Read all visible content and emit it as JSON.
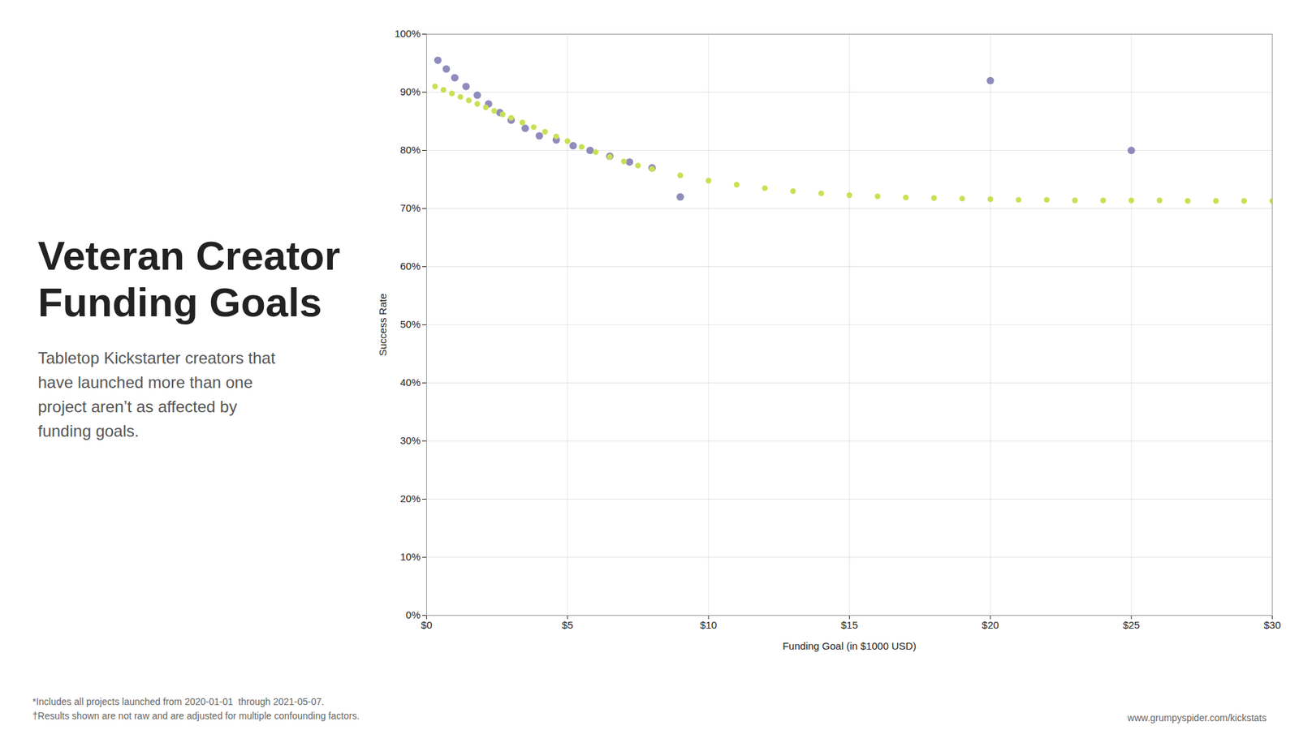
{
  "chart_data": {
    "type": "scatter",
    "title": "Veteran Creator\nFunding Goals",
    "subtitle": "Tabletop Kickstarter creators that\nhave launched more than one\nproject aren’t as affected by\nfunding goals.",
    "xlabel": "Funding Goal (in $1000 USD)",
    "ylabel": "Success Rate",
    "annotations": [
      "*Includes all projects launched from 2020-01-01  through 2021-05-07.",
      "†Results shown are not raw and are adjusted for multiple confounding factors.",
      "www.grumpyspider.com/kickstats"
    ],
    "series": [
      {
        "x": [
          0.4,
          0.7,
          1.0,
          1.4,
          1.8,
          2.2,
          2.6,
          3.0,
          3.5,
          4.0,
          4.6,
          5.2,
          5.8,
          6.5,
          7.2,
          8.0,
          9.0,
          20.0,
          25.0
        ],
        "values": [
          0.955,
          0.94,
          0.925,
          0.91,
          0.895,
          0.88,
          0.865,
          0.852,
          0.838,
          0.825,
          0.818,
          0.808,
          0.8,
          0.79,
          0.78,
          0.77,
          0.72,
          0.92,
          0.8
        ],
        "color": "#7b78b0",
        "marker": "circle"
      },
      {
        "x": [
          0.3,
          0.6,
          0.9,
          1.2,
          1.5,
          1.8,
          2.1,
          2.4,
          2.7,
          3.0,
          3.4,
          3.8,
          4.2,
          4.6,
          5.0,
          5.5,
          6.0,
          6.5,
          7.0,
          7.5,
          8.0,
          9.0,
          10.0,
          11.0,
          12.0,
          13.0,
          14.0,
          15.0,
          16.0,
          17.0,
          18.0,
          19.0,
          20.0,
          21.0,
          22.0,
          23.0,
          24.0,
          25.0,
          26.0,
          27.0,
          28.0,
          29.0,
          30.0
        ],
        "values": [
          0.91,
          0.904,
          0.898,
          0.892,
          0.886,
          0.88,
          0.874,
          0.868,
          0.862,
          0.856,
          0.848,
          0.84,
          0.832,
          0.824,
          0.816,
          0.806,
          0.797,
          0.789,
          0.781,
          0.774,
          0.768,
          0.757,
          0.748,
          0.741,
          0.735,
          0.73,
          0.726,
          0.723,
          0.721,
          0.719,
          0.718,
          0.717,
          0.716,
          0.715,
          0.715,
          0.714,
          0.714,
          0.714,
          0.714,
          0.713,
          0.713,
          0.713,
          0.713
        ],
        "color": "#c8e054",
        "marker": "circle"
      }
    ],
    "xlim": [
      0,
      30
    ],
    "ylim": [
      0,
      1.0
    ],
    "xticks": [
      {
        "value": 0,
        "label": "$0"
      },
      {
        "value": 5,
        "label": "$5"
      },
      {
        "value": 10,
        "label": "$10"
      },
      {
        "value": 15,
        "label": "$15"
      },
      {
        "value": 20,
        "label": "$20"
      },
      {
        "value": 25,
        "label": "$25"
      },
      {
        "value": 30,
        "label": "$30"
      }
    ],
    "yticks": [
      {
        "value": 0,
        "label": "0%"
      },
      {
        "value": 0.1,
        "label": "10%"
      },
      {
        "value": 0.2,
        "label": "20%"
      },
      {
        "value": 0.3,
        "label": "30%"
      },
      {
        "value": 0.4,
        "label": "40%"
      },
      {
        "value": 0.5,
        "label": "50%"
      },
      {
        "value": 0.6,
        "label": "60%"
      },
      {
        "value": 0.7,
        "label": "70%"
      },
      {
        "value": 0.8,
        "label": "80%"
      },
      {
        "value": 0.9,
        "label": "90%"
      },
      {
        "value": 1.0,
        "label": "100%"
      }
    ],
    "grid": true
  }
}
